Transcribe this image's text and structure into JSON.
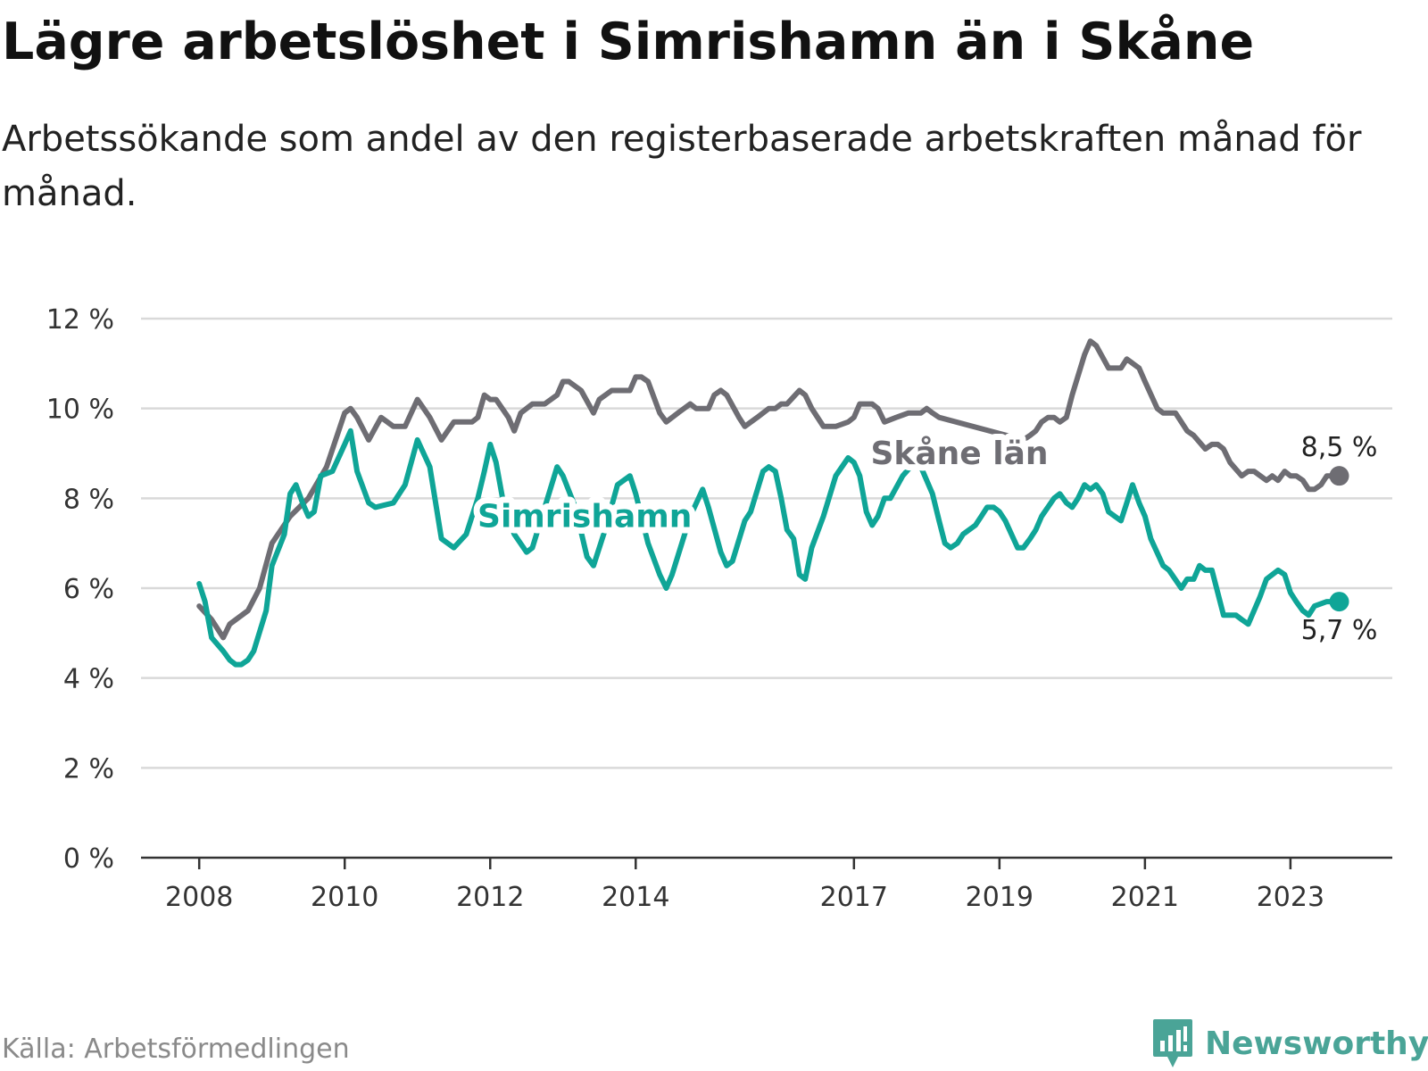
{
  "header": {
    "title": "Lägre arbetslöshet i Simrishamn än i Skåne",
    "subtitle": "Arbetssökande som andel av den registerbaserade arbetskraften månad för månad."
  },
  "footer": {
    "source": "Källa: Arbetsförmedlingen",
    "brand": "Newsworthy"
  },
  "colors": {
    "simrishamn": "#0fa597",
    "skane": "#6e6d73",
    "grid": "#d9d9d9",
    "axis": "#333333",
    "brand": "#4aa497"
  },
  "chart_data": {
    "type": "line",
    "title": "Lägre arbetslöshet i Simrishamn än i Skåne",
    "subtitle": "Arbetssökande som andel av den registerbaserade arbetskraften månad för månad.",
    "xlabel": "",
    "ylabel": "",
    "x_range": [
      2007.2,
      2024.4
    ],
    "ylim": [
      0,
      12
    ],
    "y_ticks": [
      0,
      2,
      4,
      6,
      8,
      10,
      12
    ],
    "y_tick_labels": [
      "0 %",
      "2 %",
      "4 %",
      "6 %",
      "8 %",
      "10 %",
      "12 %"
    ],
    "x_ticks": [
      2008,
      2010,
      2012,
      2014,
      2017,
      2019,
      2021,
      2023
    ],
    "x_tick_labels": [
      "2008",
      "2010",
      "2012",
      "2014",
      "2017",
      "2019",
      "2021",
      "2023"
    ],
    "grid": true,
    "series": [
      {
        "name": "Skåne län",
        "label": "Skåne län",
        "end_label": "8,5 %",
        "color": "#6e6d73",
        "points": [
          [
            2008.0,
            5.6
          ],
          [
            2008.17,
            5.3
          ],
          [
            2008.33,
            4.9
          ],
          [
            2008.42,
            5.2
          ],
          [
            2008.67,
            5.5
          ],
          [
            2008.83,
            6.0
          ],
          [
            2009.0,
            7.0
          ],
          [
            2009.25,
            7.6
          ],
          [
            2009.5,
            8.0
          ],
          [
            2009.75,
            8.7
          ],
          [
            2010.0,
            9.9
          ],
          [
            2010.08,
            10.0
          ],
          [
            2010.17,
            9.8
          ],
          [
            2010.33,
            9.3
          ],
          [
            2010.5,
            9.8
          ],
          [
            2010.67,
            9.6
          ],
          [
            2010.83,
            9.6
          ],
          [
            2011.0,
            10.2
          ],
          [
            2011.17,
            9.8
          ],
          [
            2011.33,
            9.3
          ],
          [
            2011.5,
            9.7
          ],
          [
            2011.75,
            9.7
          ],
          [
            2011.83,
            9.8
          ],
          [
            2011.92,
            10.3
          ],
          [
            2012.0,
            10.2
          ],
          [
            2012.08,
            10.2
          ],
          [
            2012.25,
            9.8
          ],
          [
            2012.33,
            9.5
          ],
          [
            2012.42,
            9.9
          ],
          [
            2012.58,
            10.1
          ],
          [
            2012.75,
            10.1
          ],
          [
            2012.92,
            10.3
          ],
          [
            2013.0,
            10.6
          ],
          [
            2013.08,
            10.6
          ],
          [
            2013.25,
            10.4
          ],
          [
            2013.42,
            9.9
          ],
          [
            2013.5,
            10.2
          ],
          [
            2013.67,
            10.4
          ],
          [
            2013.92,
            10.4
          ],
          [
            2014.0,
            10.7
          ],
          [
            2014.08,
            10.7
          ],
          [
            2014.17,
            10.6
          ],
          [
            2014.33,
            9.9
          ],
          [
            2014.42,
            9.7
          ],
          [
            2014.58,
            9.9
          ],
          [
            2014.75,
            10.1
          ],
          [
            2014.83,
            10.0
          ],
          [
            2015.0,
            10.0
          ],
          [
            2015.08,
            10.3
          ],
          [
            2015.17,
            10.4
          ],
          [
            2015.25,
            10.3
          ],
          [
            2015.42,
            9.8
          ],
          [
            2015.5,
            9.6
          ],
          [
            2015.67,
            9.8
          ],
          [
            2015.83,
            10.0
          ],
          [
            2015.92,
            10.0
          ],
          [
            2016.0,
            10.1
          ],
          [
            2016.08,
            10.1
          ],
          [
            2016.25,
            10.4
          ],
          [
            2016.33,
            10.3
          ],
          [
            2016.42,
            10.0
          ],
          [
            2016.58,
            9.6
          ],
          [
            2016.75,
            9.6
          ],
          [
            2016.92,
            9.7
          ],
          [
            2017.0,
            9.8
          ],
          [
            2017.08,
            10.1
          ],
          [
            2017.25,
            10.1
          ],
          [
            2017.33,
            10.0
          ],
          [
            2017.42,
            9.7
          ],
          [
            2017.58,
            9.8
          ],
          [
            2017.75,
            9.9
          ],
          [
            2017.92,
            9.9
          ],
          [
            2018.0,
            10.0
          ],
          [
            2018.08,
            9.9
          ],
          [
            2018.17,
            9.8
          ],
          [
            2019.33,
            9.3
          ],
          [
            2019.42,
            9.4
          ],
          [
            2019.5,
            9.5
          ],
          [
            2019.58,
            9.7
          ],
          [
            2019.67,
            9.8
          ],
          [
            2019.75,
            9.8
          ],
          [
            2019.83,
            9.7
          ],
          [
            2019.92,
            9.8
          ],
          [
            2020.0,
            10.3
          ],
          [
            2020.17,
            11.2
          ],
          [
            2020.25,
            11.5
          ],
          [
            2020.33,
            11.4
          ],
          [
            2020.5,
            10.9
          ],
          [
            2020.67,
            10.9
          ],
          [
            2020.75,
            11.1
          ],
          [
            2020.92,
            10.9
          ],
          [
            2021.0,
            10.6
          ],
          [
            2021.17,
            10.0
          ],
          [
            2021.25,
            9.9
          ],
          [
            2021.42,
            9.9
          ],
          [
            2021.58,
            9.5
          ],
          [
            2021.67,
            9.4
          ],
          [
            2021.83,
            9.1
          ],
          [
            2021.92,
            9.2
          ],
          [
            2022.0,
            9.2
          ],
          [
            2022.08,
            9.1
          ],
          [
            2022.17,
            8.8
          ],
          [
            2022.33,
            8.5
          ],
          [
            2022.42,
            8.6
          ],
          [
            2022.5,
            8.6
          ],
          [
            2022.67,
            8.4
          ],
          [
            2022.75,
            8.5
          ],
          [
            2022.83,
            8.4
          ],
          [
            2022.92,
            8.6
          ],
          [
            2023.0,
            8.5
          ],
          [
            2023.08,
            8.5
          ],
          [
            2023.17,
            8.4
          ],
          [
            2023.25,
            8.2
          ],
          [
            2023.33,
            8.2
          ],
          [
            2023.42,
            8.3
          ],
          [
            2023.5,
            8.5
          ],
          [
            2023.58,
            8.5
          ],
          [
            2023.67,
            8.5
          ]
        ]
      },
      {
        "name": "Simrishamn",
        "label": "Simrishamn",
        "end_label": "5,7 %",
        "color": "#0fa597",
        "points": [
          [
            2008.0,
            6.1
          ],
          [
            2008.08,
            5.7
          ],
          [
            2008.17,
            4.9
          ],
          [
            2008.33,
            4.6
          ],
          [
            2008.42,
            4.4
          ],
          [
            2008.5,
            4.3
          ],
          [
            2008.58,
            4.3
          ],
          [
            2008.67,
            4.4
          ],
          [
            2008.75,
            4.6
          ],
          [
            2008.92,
            5.5
          ],
          [
            2009.0,
            6.5
          ],
          [
            2009.17,
            7.2
          ],
          [
            2009.25,
            8.1
          ],
          [
            2009.33,
            8.3
          ],
          [
            2009.42,
            7.9
          ],
          [
            2009.5,
            7.6
          ],
          [
            2009.58,
            7.7
          ],
          [
            2009.67,
            8.5
          ],
          [
            2009.83,
            8.6
          ],
          [
            2010.0,
            9.2
          ],
          [
            2010.08,
            9.5
          ],
          [
            2010.17,
            8.6
          ],
          [
            2010.33,
            7.9
          ],
          [
            2010.42,
            7.8
          ],
          [
            2010.67,
            7.9
          ],
          [
            2010.83,
            8.3
          ],
          [
            2011.0,
            9.3
          ],
          [
            2011.17,
            8.7
          ],
          [
            2011.33,
            7.1
          ],
          [
            2011.5,
            6.9
          ],
          [
            2011.67,
            7.2
          ],
          [
            2011.83,
            8.0
          ],
          [
            2011.92,
            8.6
          ],
          [
            2012.0,
            9.2
          ],
          [
            2012.08,
            8.8
          ],
          [
            2012.17,
            8.0
          ],
          [
            2012.33,
            7.2
          ],
          [
            2012.5,
            6.8
          ],
          [
            2012.58,
            6.9
          ],
          [
            2012.75,
            7.8
          ],
          [
            2012.92,
            8.7
          ],
          [
            2013.0,
            8.5
          ],
          [
            2013.17,
            7.8
          ],
          [
            2013.33,
            6.7
          ],
          [
            2013.42,
            6.5
          ],
          [
            2013.58,
            7.3
          ],
          [
            2013.75,
            8.3
          ],
          [
            2013.92,
            8.5
          ],
          [
            2014.0,
            8.1
          ],
          [
            2014.17,
            7.0
          ],
          [
            2014.33,
            6.3
          ],
          [
            2014.42,
            6.0
          ],
          [
            2014.5,
            6.3
          ],
          [
            2014.75,
            7.6
          ],
          [
            2014.92,
            8.2
          ],
          [
            2015.0,
            7.8
          ],
          [
            2015.17,
            6.8
          ],
          [
            2015.25,
            6.5
          ],
          [
            2015.33,
            6.6
          ],
          [
            2015.5,
            7.5
          ],
          [
            2015.58,
            7.7
          ],
          [
            2015.75,
            8.6
          ],
          [
            2015.83,
            8.7
          ],
          [
            2015.92,
            8.6
          ],
          [
            2016.0,
            8.0
          ],
          [
            2016.08,
            7.3
          ],
          [
            2016.17,
            7.1
          ],
          [
            2016.25,
            6.3
          ],
          [
            2016.33,
            6.2
          ],
          [
            2016.42,
            6.9
          ],
          [
            2016.58,
            7.6
          ],
          [
            2016.75,
            8.5
          ],
          [
            2016.92,
            8.9
          ],
          [
            2017.0,
            8.8
          ],
          [
            2017.08,
            8.5
          ],
          [
            2017.17,
            7.7
          ],
          [
            2017.25,
            7.4
          ],
          [
            2017.33,
            7.6
          ],
          [
            2017.42,
            8.0
          ],
          [
            2017.5,
            8.0
          ],
          [
            2017.67,
            8.5
          ],
          [
            2017.83,
            8.8
          ],
          [
            2017.92,
            8.7
          ],
          [
            2018.0,
            8.4
          ],
          [
            2018.08,
            8.1
          ],
          [
            2018.17,
            7.5
          ],
          [
            2018.25,
            7.0
          ],
          [
            2018.33,
            6.9
          ],
          [
            2018.42,
            7.0
          ],
          [
            2018.5,
            7.2
          ],
          [
            2018.67,
            7.4
          ],
          [
            2018.75,
            7.6
          ],
          [
            2018.83,
            7.8
          ],
          [
            2018.92,
            7.8
          ],
          [
            2019.0,
            7.7
          ],
          [
            2019.08,
            7.5
          ],
          [
            2019.25,
            6.9
          ],
          [
            2019.33,
            6.9
          ],
          [
            2019.42,
            7.1
          ],
          [
            2019.5,
            7.3
          ],
          [
            2019.58,
            7.6
          ],
          [
            2019.75,
            8.0
          ],
          [
            2019.83,
            8.1
          ],
          [
            2019.92,
            7.9
          ],
          [
            2020.0,
            7.8
          ],
          [
            2020.08,
            8.0
          ],
          [
            2020.17,
            8.3
          ],
          [
            2020.25,
            8.2
          ],
          [
            2020.33,
            8.3
          ],
          [
            2020.42,
            8.1
          ],
          [
            2020.5,
            7.7
          ],
          [
            2020.67,
            7.5
          ],
          [
            2020.75,
            7.9
          ],
          [
            2020.83,
            8.3
          ],
          [
            2020.92,
            7.9
          ],
          [
            2021.0,
            7.6
          ],
          [
            2021.08,
            7.1
          ],
          [
            2021.25,
            6.5
          ],
          [
            2021.33,
            6.4
          ],
          [
            2021.5,
            6.0
          ],
          [
            2021.58,
            6.2
          ],
          [
            2021.67,
            6.2
          ],
          [
            2021.75,
            6.5
          ],
          [
            2021.83,
            6.4
          ],
          [
            2021.92,
            6.4
          ],
          [
            2022.0,
            5.9
          ],
          [
            2022.08,
            5.4
          ],
          [
            2022.25,
            5.4
          ],
          [
            2022.33,
            5.3
          ],
          [
            2022.42,
            5.2
          ],
          [
            2022.5,
            5.5
          ],
          [
            2022.58,
            5.8
          ],
          [
            2022.67,
            6.2
          ],
          [
            2022.75,
            6.3
          ],
          [
            2022.83,
            6.4
          ],
          [
            2022.92,
            6.3
          ],
          [
            2023.0,
            5.9
          ],
          [
            2023.08,
            5.7
          ],
          [
            2023.17,
            5.5
          ],
          [
            2023.25,
            5.4
          ],
          [
            2023.33,
            5.6
          ],
          [
            2023.5,
            5.7
          ],
          [
            2023.67,
            5.7
          ]
        ]
      }
    ]
  }
}
